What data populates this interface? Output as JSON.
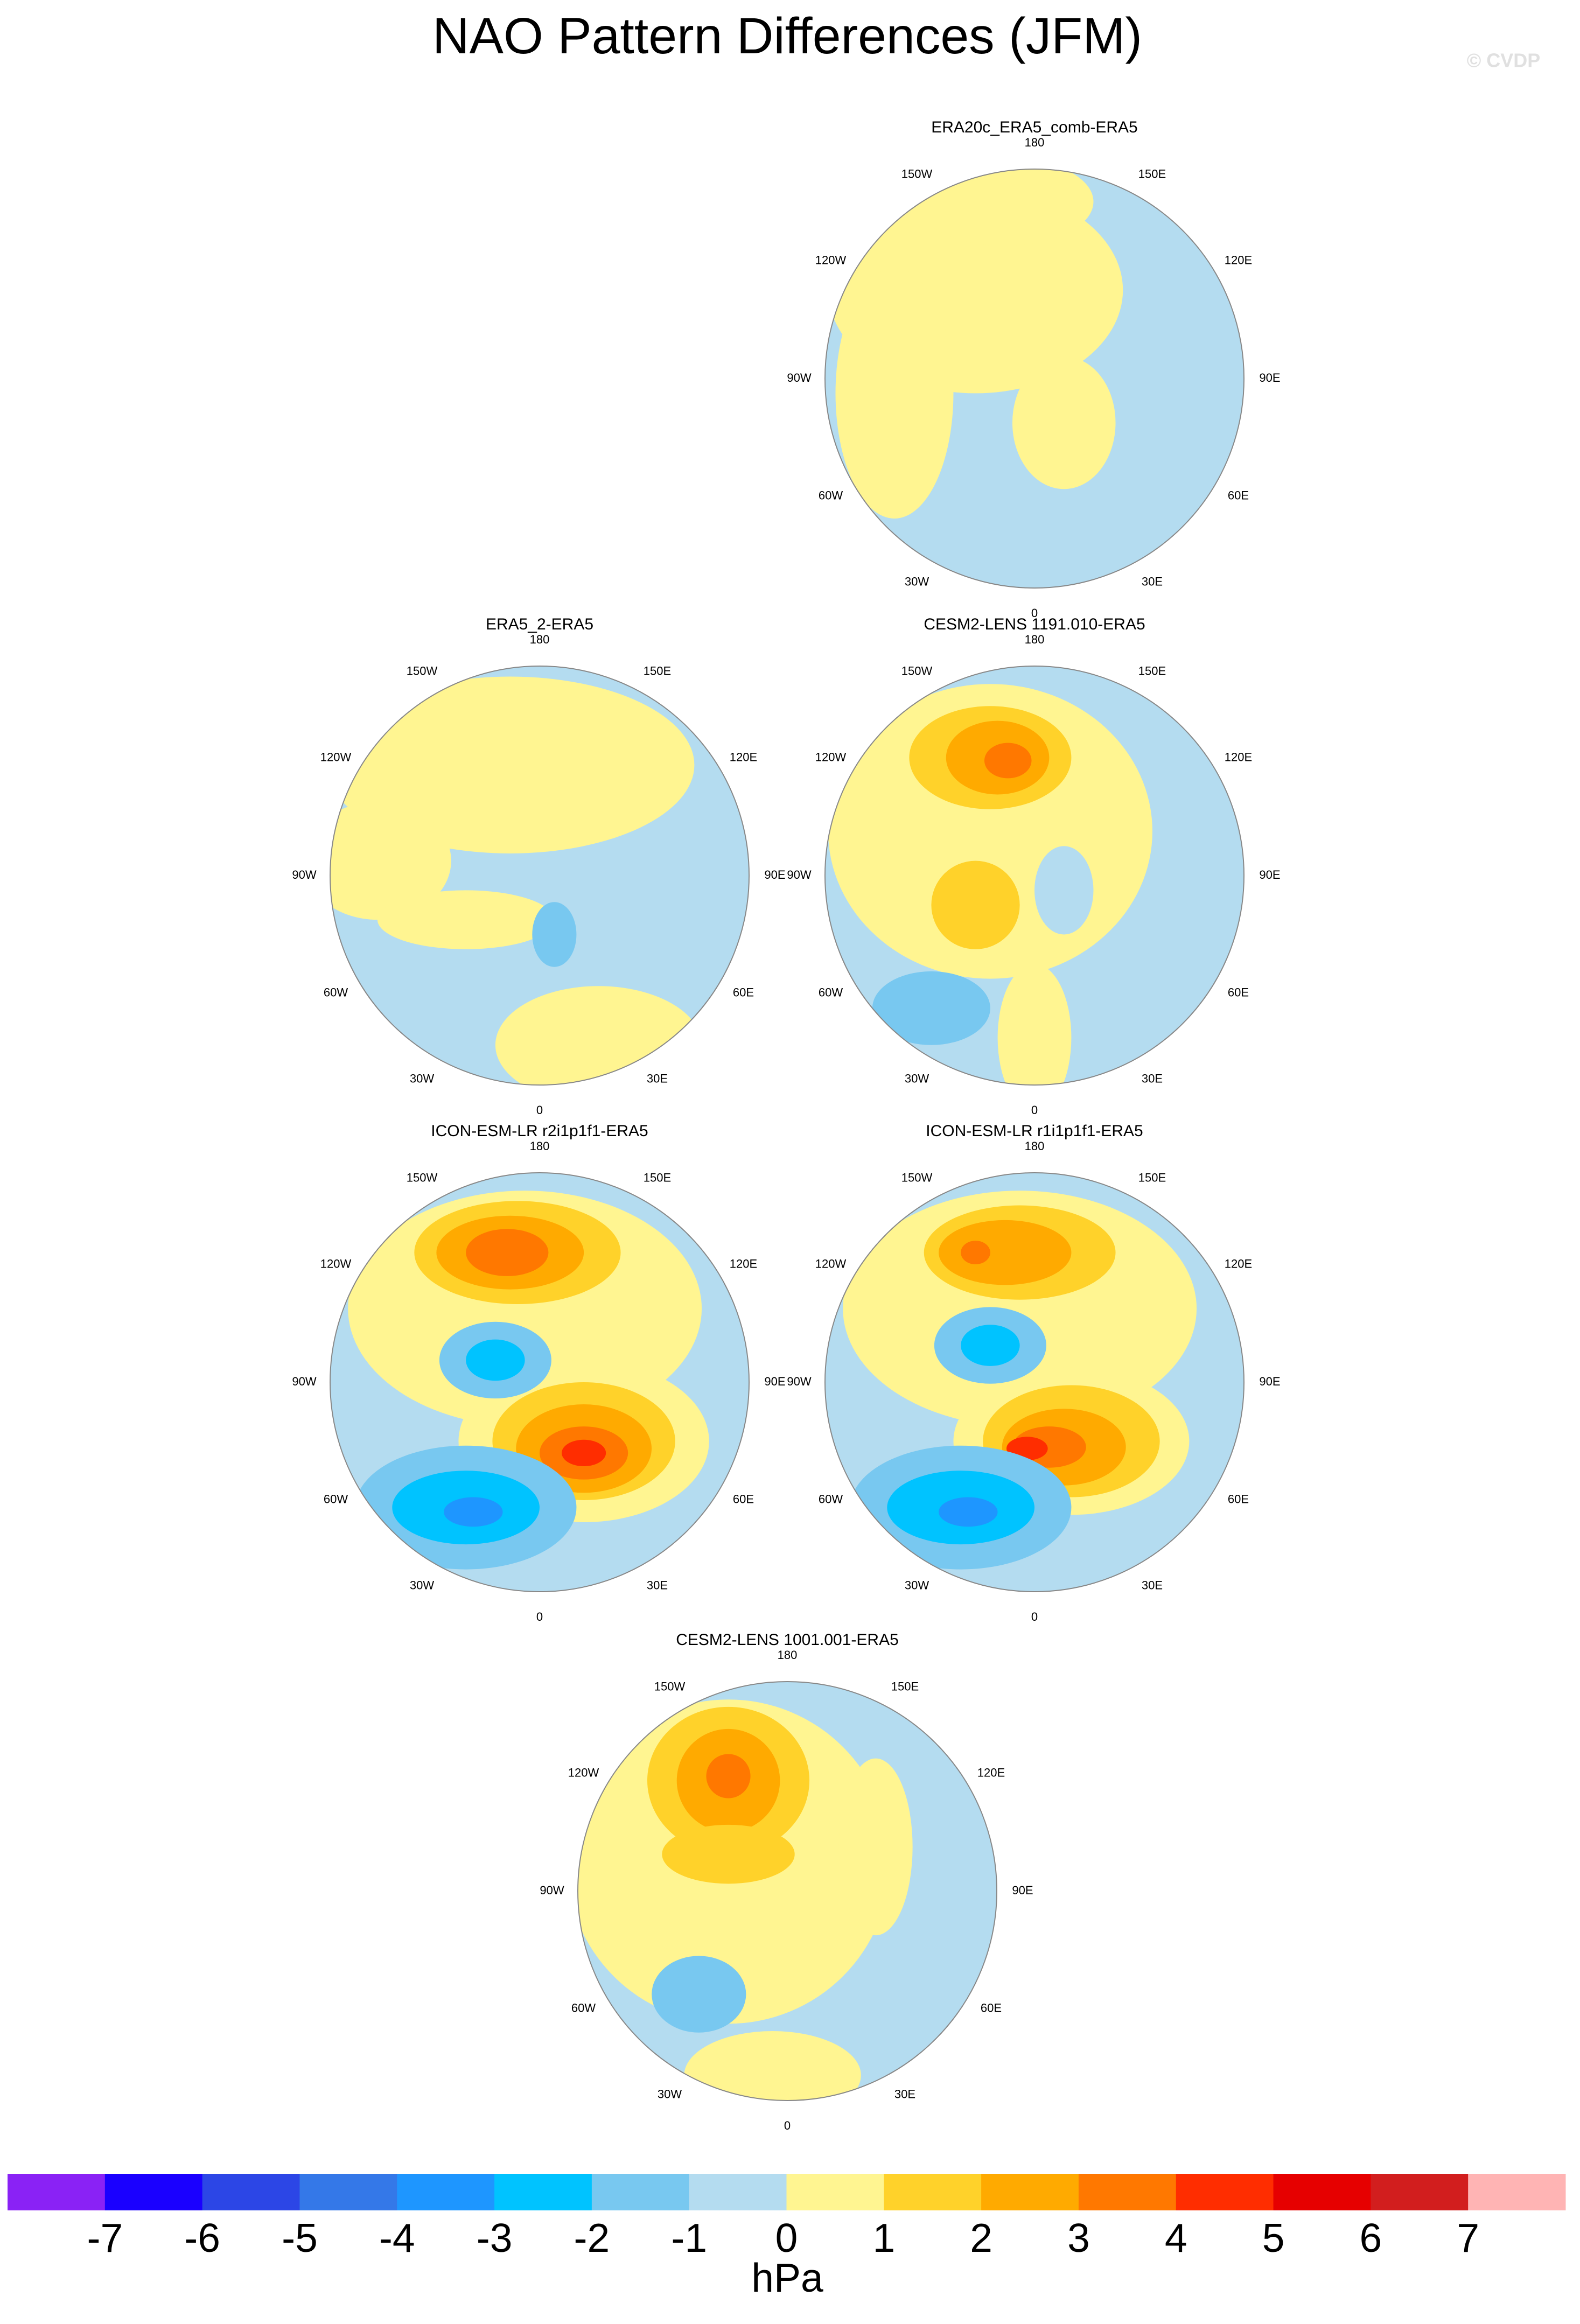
{
  "title": "NAO Pattern Differences (JFM)",
  "watermark": "© CVDP",
  "longitude_labels": [
    "0",
    "30E",
    "60E",
    "90E",
    "120E",
    "150E",
    "180",
    "150W",
    "120W",
    "90W",
    "60W",
    "30W"
  ],
  "panels": [
    {
      "title": "ERA20c_ERA5_comb-ERA5"
    },
    {
      "title": "ERA5_2-ERA5"
    },
    {
      "title": "CESM2-LENS 1191.010-ERA5"
    },
    {
      "title": "ICON-ESM-LR r2i1p1f1-ERA5"
    },
    {
      "title": "ICON-ESM-LR r1i1p1f1-ERA5"
    },
    {
      "title": "CESM2-LENS 1001.001-ERA5"
    }
  ],
  "colorbar": {
    "ticks": [
      -7,
      -6,
      -5,
      -4,
      -3,
      -2,
      -1,
      0,
      1,
      2,
      3,
      4,
      5,
      6,
      7
    ],
    "colors": [
      "#8a22f5",
      "#1a00ff",
      "#2c46e6",
      "#3478e8",
      "#1e96ff",
      "#00c3ff",
      "#78c8f0",
      "#b4dcf0",
      "#fff591",
      "#ffd22a",
      "#ffaa00",
      "#ff7800",
      "#ff2d00",
      "#e60000",
      "#d21e1e",
      "#ffb4b4"
    ],
    "label": "hPa"
  }
}
